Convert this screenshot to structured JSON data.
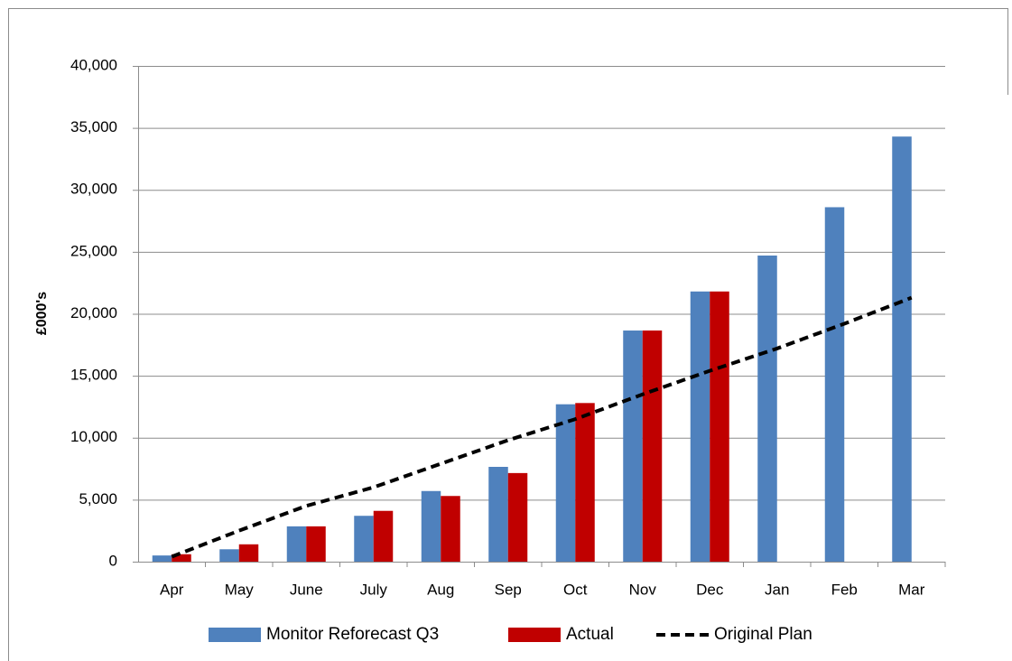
{
  "chart_data": {
    "type": "bar",
    "y_label": "£000's",
    "categories": [
      "Apr",
      "May",
      "June",
      "July",
      "Aug",
      "Sep",
      "Oct",
      "Nov",
      "Dec",
      "Jan",
      "Feb",
      "Mar"
    ],
    "series": [
      {
        "name": "Monitor Reforecast Q3",
        "color": "#4f81bd",
        "type": "bar",
        "values": [
          500,
          1000,
          2850,
          3700,
          5700,
          7650,
          12700,
          18650,
          21800,
          24700,
          28600,
          34300
        ]
      },
      {
        "name": "Actual",
        "color": "#c00000",
        "type": "bar",
        "values": [
          600,
          1400,
          2850,
          4100,
          5300,
          7150,
          12800,
          18650,
          21800,
          null,
          null,
          null
        ]
      },
      {
        "name": "Original Plan",
        "color": "#000000",
        "type": "line",
        "dashed": true,
        "values": [
          400,
          2500,
          4500,
          6000,
          7900,
          9800,
          11500,
          13500,
          15400,
          17200,
          19200,
          21300
        ]
      }
    ],
    "ylim": [
      0,
      40000
    ],
    "yticks": [
      0,
      {
        "value": 5000,
        "label": "5,000"
      },
      {
        "value": 10000,
        "label": "10,000"
      },
      {
        "value": 15000,
        "label": "15,000"
      },
      {
        "value": 20000,
        "label": "20,000"
      },
      {
        "value": 25000,
        "label": "25,000"
      },
      {
        "value": 30000,
        "label": "30,000"
      },
      {
        "value": 35000,
        "label": "35,000"
      },
      {
        "value": 40000,
        "label": "40,000"
      }
    ],
    "grid": true,
    "legend": "bottom"
  }
}
